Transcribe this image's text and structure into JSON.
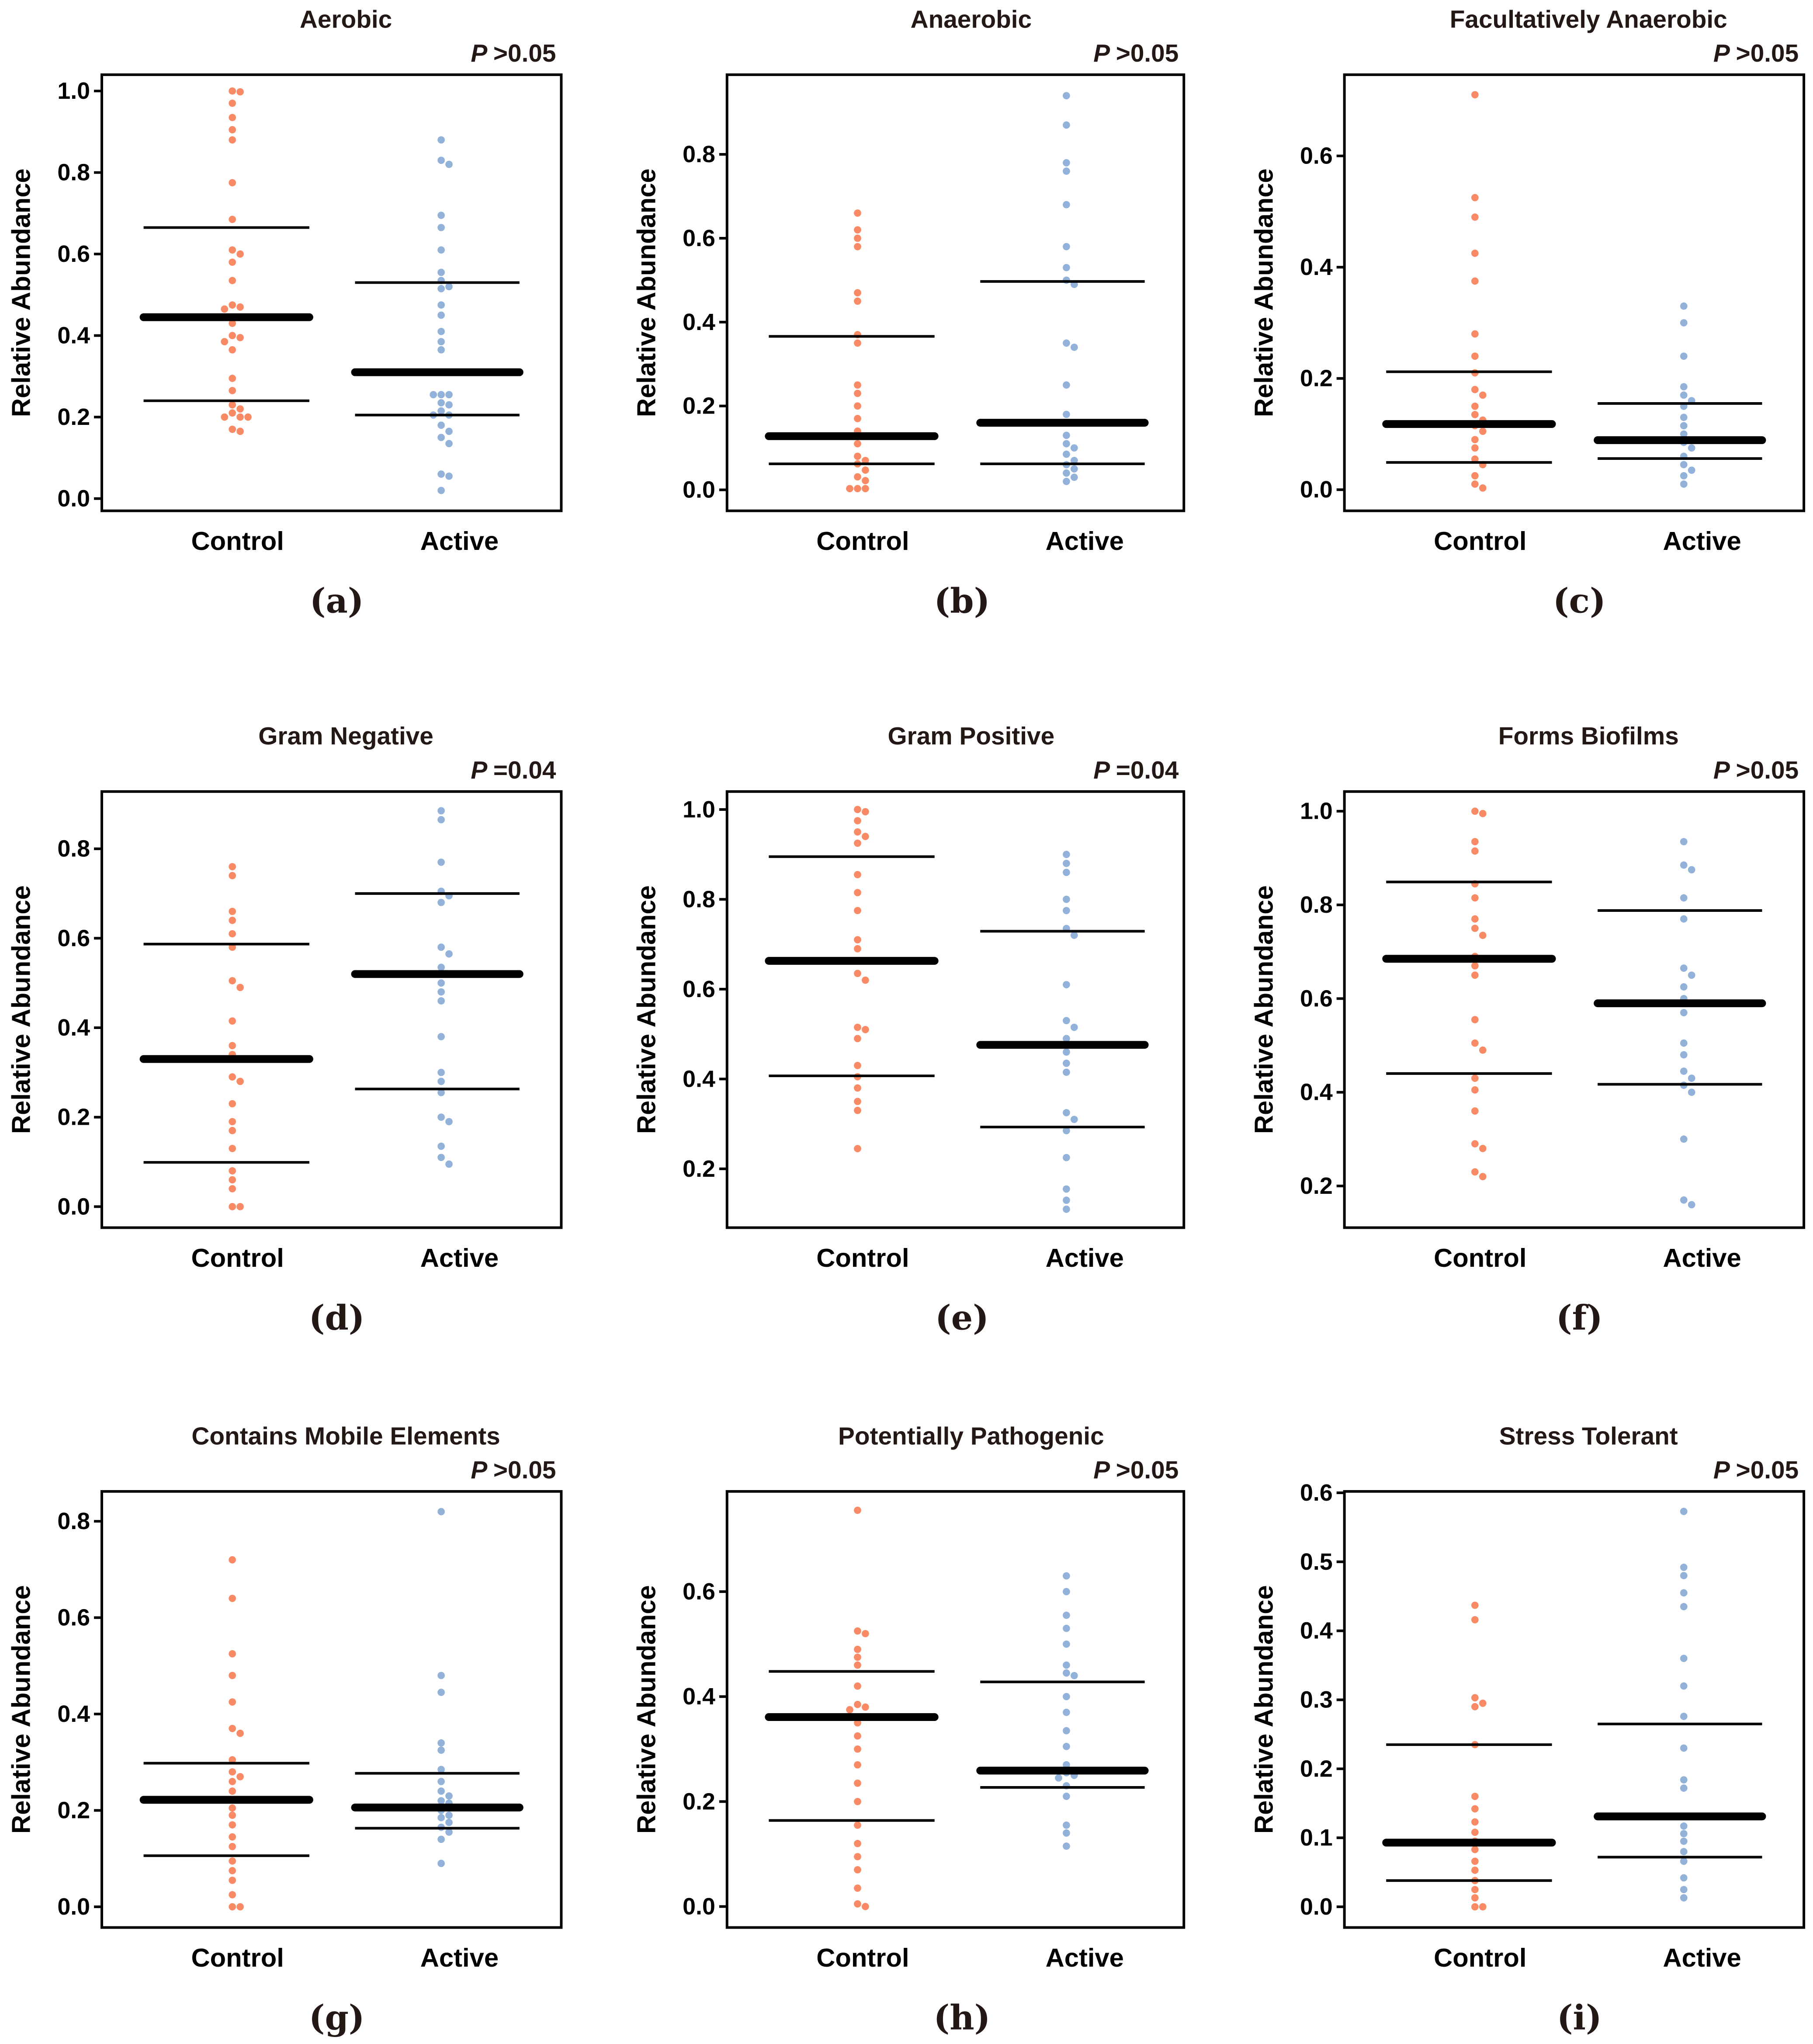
{
  "colors": {
    "control": "#F88A65",
    "active": "#92B2D9",
    "line": "#000000"
  },
  "chart_data": [
    {
      "type": "scatter",
      "panel": "(a)",
      "title": "Aerobic",
      "p_value": "P >0.05",
      "ylabel": "Relative Abundance",
      "categories": [
        "Control",
        "Active"
      ],
      "ylim": [
        -0.03,
        1.04
      ],
      "yticks": [
        0.0,
        0.2,
        0.4,
        0.6,
        0.8,
        1.0
      ],
      "tick_decimals": 1,
      "series": [
        {
          "name": "Control",
          "median": 0.445,
          "q1": 0.24,
          "q3": 0.665,
          "values": [
            1.0,
            0.998,
            0.97,
            0.935,
            0.905,
            0.88,
            0.775,
            0.685,
            0.61,
            0.6,
            0.58,
            0.535,
            0.475,
            0.47,
            0.465,
            0.43,
            0.4,
            0.395,
            0.385,
            0.365,
            0.295,
            0.265,
            0.23,
            0.22,
            0.21,
            0.2,
            0.2,
            0.2,
            0.17,
            0.165
          ]
        },
        {
          "name": "Active",
          "median": 0.31,
          "q1": 0.205,
          "q3": 0.53,
          "values": [
            0.88,
            0.83,
            0.82,
            0.695,
            0.665,
            0.61,
            0.555,
            0.535,
            0.52,
            0.515,
            0.475,
            0.45,
            0.41,
            0.385,
            0.365,
            0.255,
            0.255,
            0.255,
            0.235,
            0.23,
            0.215,
            0.205,
            0.205,
            0.18,
            0.165,
            0.15,
            0.135,
            0.06,
            0.055,
            0.02
          ]
        }
      ]
    },
    {
      "type": "scatter",
      "panel": "(b)",
      "title": "Anaerobic",
      "p_value": "P >0.05",
      "ylabel": "Relative Abundance",
      "categories": [
        "Control",
        "Active"
      ],
      "ylim": [
        -0.05,
        0.99
      ],
      "yticks": [
        0.0,
        0.2,
        0.4,
        0.6,
        0.8
      ],
      "tick_decimals": 1,
      "series": [
        {
          "name": "Control",
          "median": 0.128,
          "q1": 0.062,
          "q3": 0.366,
          "values": [
            0.66,
            0.62,
            0.6,
            0.58,
            0.47,
            0.45,
            0.37,
            0.35,
            0.25,
            0.23,
            0.2,
            0.17,
            0.14,
            0.11,
            0.08,
            0.07,
            0.062,
            0.047,
            0.031,
            0.022,
            0.003,
            0.003,
            0.003
          ]
        },
        {
          "name": "Active",
          "median": 0.16,
          "q1": 0.062,
          "q3": 0.497,
          "values": [
            0.94,
            0.87,
            0.78,
            0.76,
            0.68,
            0.58,
            0.53,
            0.5,
            0.49,
            0.35,
            0.34,
            0.25,
            0.18,
            0.13,
            0.11,
            0.1,
            0.085,
            0.07,
            0.06,
            0.05,
            0.04,
            0.03,
            0.02
          ]
        }
      ]
    },
    {
      "type": "scatter",
      "panel": "(c)",
      "title": "Facultatively  Anaerobic",
      "p_value": "P >0.05",
      "ylabel": "Relative Abundance",
      "categories": [
        "Control",
        "Active"
      ],
      "ylim": [
        -0.038,
        0.746
      ],
      "yticks": [
        0.0,
        0.2,
        0.4,
        0.6
      ],
      "tick_decimals": 1,
      "series": [
        {
          "name": "Control",
          "median": 0.118,
          "q1": 0.049,
          "q3": 0.212,
          "values": [
            0.71,
            0.525,
            0.49,
            0.425,
            0.375,
            0.28,
            0.24,
            0.21,
            0.18,
            0.17,
            0.15,
            0.135,
            0.125,
            0.115,
            0.105,
            0.09,
            0.075,
            0.055,
            0.045,
            0.025,
            0.01,
            0.003
          ]
        },
        {
          "name": "Active",
          "median": 0.089,
          "q1": 0.056,
          "q3": 0.155,
          "values": [
            0.33,
            0.3,
            0.24,
            0.185,
            0.17,
            0.16,
            0.15,
            0.13,
            0.115,
            0.1,
            0.085,
            0.075,
            0.06,
            0.045,
            0.035,
            0.025,
            0.01
          ]
        }
      ]
    },
    {
      "type": "scatter",
      "panel": "(d)",
      "title": "Gram  Negative",
      "p_value": "P =0.04",
      "ylabel": "Relative Abundance",
      "categories": [
        "Control",
        "Active"
      ],
      "ylim": [
        -0.047,
        0.928
      ],
      "yticks": [
        0.0,
        0.2,
        0.4,
        0.6,
        0.8
      ],
      "tick_decimals": 1,
      "series": [
        {
          "name": "Control",
          "median": 0.33,
          "q1": 0.099,
          "q3": 0.587,
          "values": [
            0.76,
            0.74,
            0.66,
            0.64,
            0.61,
            0.58,
            0.505,
            0.49,
            0.415,
            0.36,
            0.34,
            0.29,
            0.28,
            0.23,
            0.19,
            0.17,
            0.13,
            0.08,
            0.06,
            0.04,
            0.0,
            0.0
          ]
        },
        {
          "name": "Active",
          "median": 0.52,
          "q1": 0.263,
          "q3": 0.7,
          "values": [
            0.885,
            0.865,
            0.77,
            0.705,
            0.695,
            0.68,
            0.58,
            0.565,
            0.535,
            0.5,
            0.48,
            0.46,
            0.38,
            0.3,
            0.28,
            0.255,
            0.2,
            0.19,
            0.135,
            0.11,
            0.095
          ]
        }
      ]
    },
    {
      "type": "scatter",
      "panel": "(e)",
      "title": "Gram  Positive",
      "p_value": "P =0.04",
      "ylabel": "Relative Abundance",
      "categories": [
        "Control",
        "Active"
      ],
      "ylim": [
        0.069,
        1.04
      ],
      "yticks": [
        0.2,
        0.4,
        0.6,
        0.8,
        1.0
      ],
      "tick_decimals": 1,
      "series": [
        {
          "name": "Control",
          "median": 0.663,
          "q1": 0.407,
          "q3": 0.895,
          "values": [
            1.0,
            0.995,
            0.975,
            0.95,
            0.94,
            0.925,
            0.855,
            0.815,
            0.775,
            0.71,
            0.69,
            0.635,
            0.62,
            0.515,
            0.51,
            0.49,
            0.43,
            0.405,
            0.38,
            0.35,
            0.33,
            0.245
          ]
        },
        {
          "name": "Active",
          "median": 0.476,
          "q1": 0.293,
          "q3": 0.729,
          "values": [
            0.9,
            0.88,
            0.86,
            0.8,
            0.775,
            0.735,
            0.72,
            0.61,
            0.53,
            0.515,
            0.49,
            0.46,
            0.435,
            0.415,
            0.325,
            0.31,
            0.285,
            0.225,
            0.155,
            0.13,
            0.11
          ]
        }
      ]
    },
    {
      "type": "scatter",
      "panel": "(f)",
      "title": "Forms  Biofilms",
      "p_value": "P >0.05",
      "ylabel": "Relative Abundance",
      "categories": [
        "Control",
        "Active"
      ],
      "ylim": [
        0.111,
        1.042
      ],
      "yticks": [
        0.2,
        0.4,
        0.6,
        0.8,
        1.0
      ],
      "tick_decimals": 1,
      "series": [
        {
          "name": "Control",
          "median": 0.685,
          "q1": 0.44,
          "q3": 0.849,
          "values": [
            1.0,
            0.995,
            0.935,
            0.915,
            0.845,
            0.815,
            0.77,
            0.75,
            0.735,
            0.69,
            0.67,
            0.65,
            0.555,
            0.505,
            0.49,
            0.43,
            0.405,
            0.36,
            0.29,
            0.28,
            0.23,
            0.22
          ]
        },
        {
          "name": "Active",
          "median": 0.59,
          "q1": 0.417,
          "q3": 0.788,
          "values": [
            0.935,
            0.885,
            0.875,
            0.815,
            0.77,
            0.665,
            0.65,
            0.625,
            0.6,
            0.59,
            0.57,
            0.505,
            0.48,
            0.445,
            0.43,
            0.415,
            0.4,
            0.3,
            0.17,
            0.16
          ]
        }
      ]
    },
    {
      "type": "scatter",
      "panel": "(g)",
      "title": "Contains  Mobile  Elements",
      "p_value": "P >0.05",
      "ylabel": "Relative Abundance",
      "categories": [
        "Control",
        "Active"
      ],
      "ylim": [
        -0.043,
        0.862
      ],
      "yticks": [
        0.0,
        0.2,
        0.4,
        0.6,
        0.8
      ],
      "tick_decimals": 1,
      "series": [
        {
          "name": "Control",
          "median": 0.222,
          "q1": 0.106,
          "q3": 0.298,
          "values": [
            0.72,
            0.64,
            0.525,
            0.48,
            0.425,
            0.37,
            0.36,
            0.305,
            0.28,
            0.27,
            0.26,
            0.24,
            0.205,
            0.19,
            0.17,
            0.145,
            0.125,
            0.095,
            0.075,
            0.055,
            0.025,
            0.0,
            0.0
          ]
        },
        {
          "name": "Active",
          "median": 0.206,
          "q1": 0.163,
          "q3": 0.277,
          "values": [
            0.82,
            0.48,
            0.445,
            0.34,
            0.325,
            0.285,
            0.26,
            0.24,
            0.23,
            0.22,
            0.215,
            0.2,
            0.19,
            0.185,
            0.175,
            0.165,
            0.155,
            0.14,
            0.09
          ]
        }
      ]
    },
    {
      "type": "scatter",
      "panel": "(h)",
      "title": "Potentially  Pathogenic",
      "p_value": "P >0.05",
      "ylabel": "Relative Abundance",
      "categories": [
        "Control",
        "Active"
      ],
      "ylim": [
        -0.04,
        0.791
      ],
      "yticks": [
        0.0,
        0.2,
        0.4,
        0.6
      ],
      "tick_decimals": 1,
      "series": [
        {
          "name": "Control",
          "median": 0.361,
          "q1": 0.164,
          "q3": 0.448,
          "values": [
            0.755,
            0.525,
            0.52,
            0.49,
            0.475,
            0.46,
            0.42,
            0.385,
            0.38,
            0.375,
            0.35,
            0.325,
            0.3,
            0.27,
            0.235,
            0.2,
            0.155,
            0.12,
            0.095,
            0.07,
            0.035,
            0.005,
            0.0
          ]
        },
        {
          "name": "Active",
          "median": 0.259,
          "q1": 0.227,
          "q3": 0.428,
          "values": [
            0.63,
            0.6,
            0.555,
            0.53,
            0.5,
            0.46,
            0.445,
            0.44,
            0.4,
            0.37,
            0.335,
            0.305,
            0.27,
            0.255,
            0.25,
            0.245,
            0.23,
            0.21,
            0.155,
            0.14,
            0.115
          ]
        }
      ]
    },
    {
      "type": "scatter",
      "panel": "(i)",
      "title": "Stress  Tolerant",
      "p_value": "P >0.05",
      "ylabel": "Relative Abundance",
      "categories": [
        "Control",
        "Active"
      ],
      "ylim": [
        -0.03,
        0.602
      ],
      "yticks": [
        0.0,
        0.1,
        0.2,
        0.3,
        0.4,
        0.5,
        0.6
      ],
      "tick_decimals": 1,
      "series": [
        {
          "name": "Control",
          "median": 0.093,
          "q1": 0.038,
          "q3": 0.235,
          "values": [
            0.437,
            0.416,
            0.303,
            0.295,
            0.29,
            0.235,
            0.16,
            0.142,
            0.123,
            0.108,
            0.095,
            0.083,
            0.066,
            0.053,
            0.038,
            0.025,
            0.013,
            0.0,
            0.0
          ]
        },
        {
          "name": "Active",
          "median": 0.131,
          "q1": 0.072,
          "q3": 0.265,
          "values": [
            0.573,
            0.492,
            0.48,
            0.455,
            0.435,
            0.36,
            0.32,
            0.276,
            0.23,
            0.184,
            0.172,
            0.117,
            0.106,
            0.095,
            0.08,
            0.066,
            0.042,
            0.025,
            0.013
          ]
        }
      ]
    }
  ]
}
